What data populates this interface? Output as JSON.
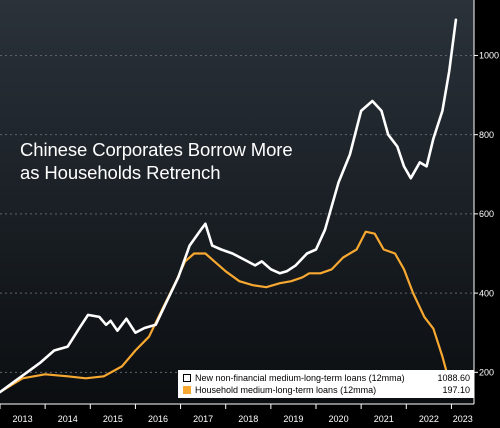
{
  "chart_data": {
    "type": "line",
    "title_lines": [
      "Chinese Corporates Borrow More",
      "as Households Retrench"
    ],
    "x_ticks": [
      "2013",
      "2014",
      "2015",
      "2016",
      "2017",
      "2018",
      "2019",
      "2020",
      "2021",
      "2022",
      "2023"
    ],
    "y_ticks": [
      "200",
      "400",
      "600",
      "800",
      "1000"
    ],
    "xlim": [
      2013.0,
      2023.5
    ],
    "ylim": [
      120,
      1140
    ],
    "grid": "horizontal dashed",
    "legend_placement": "bottom-right",
    "series": [
      {
        "name": "New non-financial medium-long-term loans (12mma)",
        "last_value": "1088.60",
        "color": "#ffffff",
        "points": [
          [
            2013.0,
            150
          ],
          [
            2013.3,
            175
          ],
          [
            2013.6,
            200
          ],
          [
            2013.9,
            225
          ],
          [
            2014.2,
            255
          ],
          [
            2014.5,
            265
          ],
          [
            2014.75,
            310
          ],
          [
            2014.95,
            345
          ],
          [
            2015.2,
            340
          ],
          [
            2015.35,
            320
          ],
          [
            2015.45,
            330
          ],
          [
            2015.6,
            305
          ],
          [
            2015.8,
            335
          ],
          [
            2016.0,
            300
          ],
          [
            2016.2,
            312
          ],
          [
            2016.45,
            320
          ],
          [
            2016.7,
            380
          ],
          [
            2016.95,
            440
          ],
          [
            2017.2,
            520
          ],
          [
            2017.45,
            560
          ],
          [
            2017.55,
            575
          ],
          [
            2017.7,
            520
          ],
          [
            2017.9,
            510
          ],
          [
            2018.15,
            500
          ],
          [
            2018.4,
            485
          ],
          [
            2018.65,
            470
          ],
          [
            2018.8,
            480
          ],
          [
            2019.0,
            460
          ],
          [
            2019.2,
            450
          ],
          [
            2019.35,
            455
          ],
          [
            2019.55,
            470
          ],
          [
            2019.8,
            500
          ],
          [
            2020.0,
            510
          ],
          [
            2020.2,
            560
          ],
          [
            2020.5,
            680
          ],
          [
            2020.75,
            750
          ],
          [
            2021.0,
            860
          ],
          [
            2021.25,
            885
          ],
          [
            2021.45,
            860
          ],
          [
            2021.6,
            800
          ],
          [
            2021.8,
            770
          ],
          [
            2021.95,
            720
          ],
          [
            2022.1,
            690
          ],
          [
            2022.3,
            730
          ],
          [
            2022.45,
            720
          ],
          [
            2022.6,
            790
          ],
          [
            2022.8,
            860
          ],
          [
            2022.95,
            960
          ],
          [
            2023.1,
            1090
          ]
        ]
      },
      {
        "name": "Household medium-long-term loans (12mma)",
        "last_value": "197.10",
        "color": "#f7a830",
        "points": [
          [
            2013.0,
            150
          ],
          [
            2013.5,
            185
          ],
          [
            2014.0,
            195
          ],
          [
            2014.5,
            190
          ],
          [
            2014.9,
            185
          ],
          [
            2015.3,
            190
          ],
          [
            2015.7,
            215
          ],
          [
            2016.0,
            255
          ],
          [
            2016.3,
            290
          ],
          [
            2016.6,
            360
          ],
          [
            2016.9,
            430
          ],
          [
            2017.1,
            480
          ],
          [
            2017.3,
            500
          ],
          [
            2017.55,
            500
          ],
          [
            2017.75,
            480
          ],
          [
            2018.0,
            455
          ],
          [
            2018.3,
            430
          ],
          [
            2018.6,
            420
          ],
          [
            2018.9,
            415
          ],
          [
            2019.2,
            425
          ],
          [
            2019.45,
            430
          ],
          [
            2019.7,
            440
          ],
          [
            2019.85,
            450
          ],
          [
            2020.1,
            450
          ],
          [
            2020.35,
            460
          ],
          [
            2020.6,
            490
          ],
          [
            2020.9,
            510
          ],
          [
            2021.1,
            555
          ],
          [
            2021.3,
            550
          ],
          [
            2021.5,
            510
          ],
          [
            2021.75,
            500
          ],
          [
            2021.95,
            460
          ],
          [
            2022.15,
            400
          ],
          [
            2022.4,
            340
          ],
          [
            2022.6,
            310
          ],
          [
            2022.8,
            240
          ],
          [
            2022.92,
            190
          ],
          [
            2023.05,
            197
          ]
        ]
      }
    ]
  }
}
